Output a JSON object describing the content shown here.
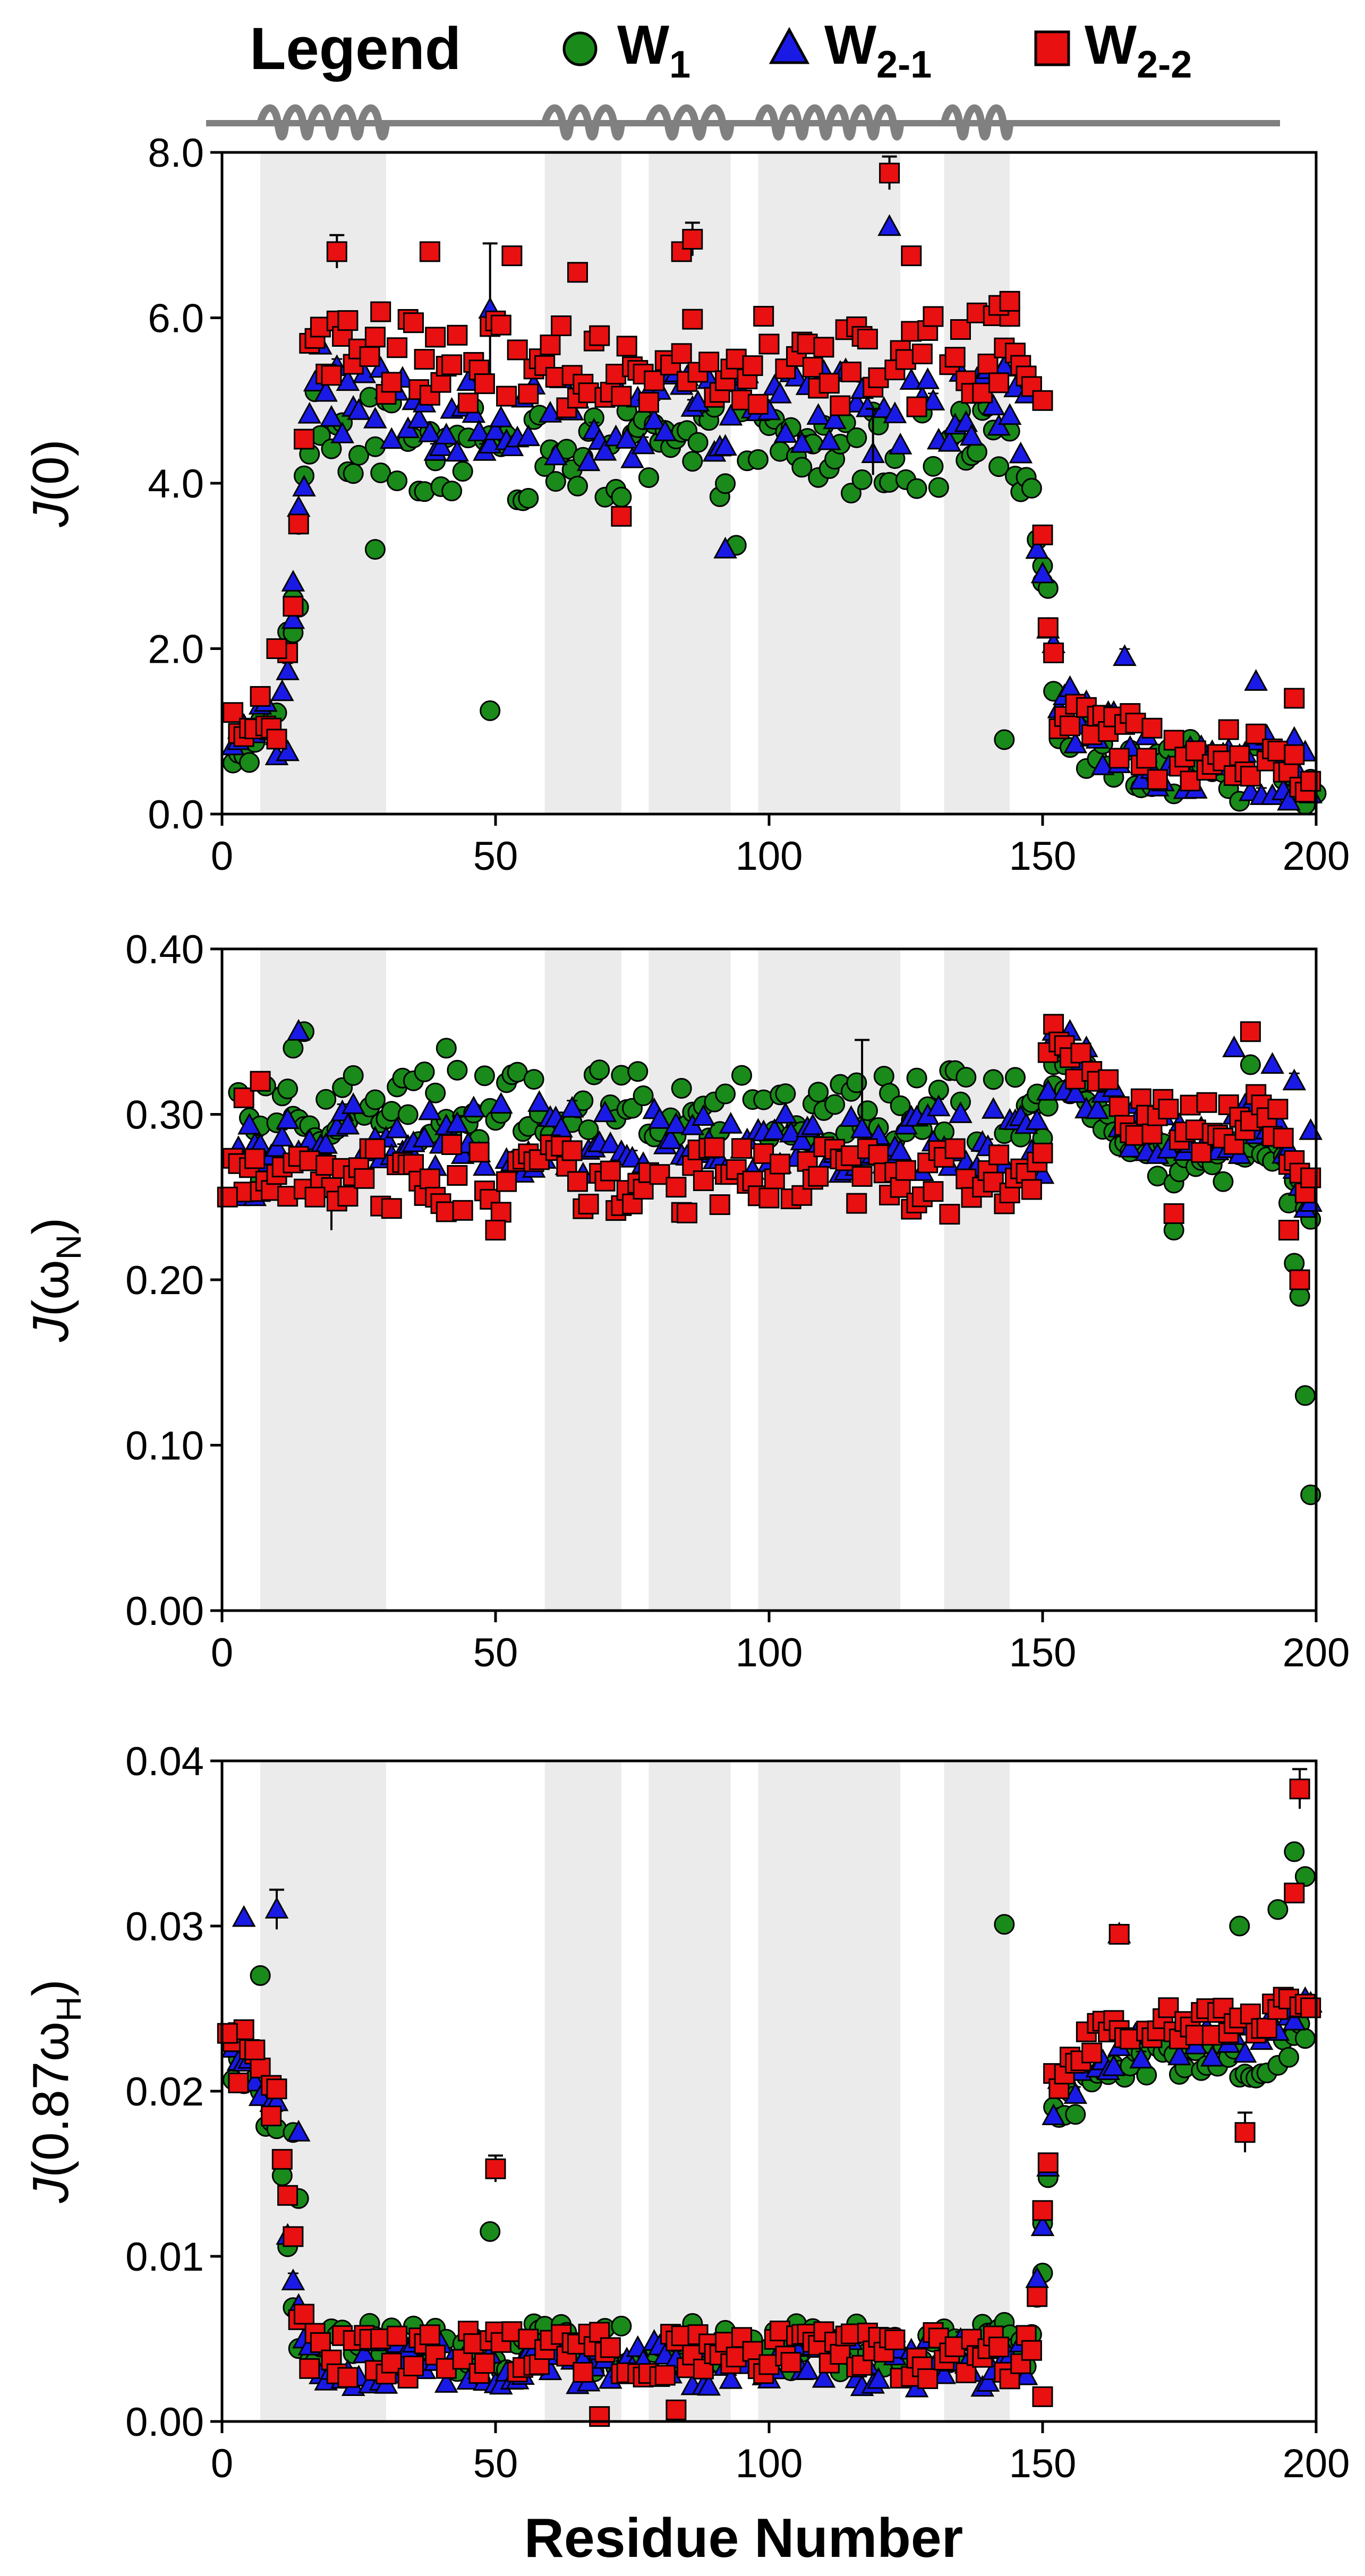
{
  "legend": {
    "title": "Legend",
    "entries": [
      {
        "key": "W1",
        "base": "W",
        "sub": "1",
        "marker": "circle",
        "color": "#1a8a1a"
      },
      {
        "key": "W2-1",
        "base": "W",
        "sub": "2-1",
        "marker": "triangle",
        "color": "#1a1ae6"
      },
      {
        "key": "W2-2",
        "base": "W",
        "sub": "2-2",
        "marker": "square",
        "color": "#e81010"
      }
    ]
  },
  "colors": {
    "W1": "#1a8a1a",
    "W2-1": "#1a1ae6",
    "W2-2": "#e81010",
    "shade": "#ebebeb",
    "axis": "#000000",
    "secondary": "#808080"
  },
  "x_axis_label": "Residue Number",
  "secondary_structure": {
    "helices": [
      [
        7,
        30
      ],
      [
        59,
        73
      ],
      [
        78,
        93
      ],
      [
        98,
        124
      ],
      [
        132,
        144
      ]
    ]
  },
  "chart_data": [
    {
      "type": "scatter",
      "title": "",
      "ylabel": {
        "main": "J(0)",
        "parts": [
          {
            "t": "J",
            "i": true
          },
          {
            "t": "(0)"
          }
        ]
      },
      "xlim": [
        0,
        200
      ],
      "ylim": [
        0,
        8
      ],
      "xticks": [
        0,
        50,
        100,
        150,
        200
      ],
      "xtick_labels": [
        "0",
        "50",
        "100",
        "150",
        "200"
      ],
      "yticks": [
        0,
        2,
        4,
        6,
        8
      ],
      "ytick_labels": [
        "0.0",
        "2.0",
        "4.0",
        "6.0",
        "8.0"
      ],
      "shaded_regions": [
        [
          7,
          30
        ],
        [
          59,
          73
        ],
        [
          78,
          93
        ],
        [
          98,
          124
        ],
        [
          132,
          144
        ]
      ],
      "base": {
        "W1": 4.4,
        "W2-1": 4.9,
        "W2-2": 5.5
      },
      "anchors": [
        [
          0,
          0.9
        ],
        [
          9,
          1.0
        ],
        [
          11,
          1.3
        ],
        [
          13,
          2.6
        ],
        [
          16,
          5.0
        ],
        [
          20,
          4.8
        ],
        [
          30,
          4.6
        ],
        [
          60,
          4.3
        ],
        [
          100,
          4.5
        ],
        [
          125,
          4.4
        ],
        [
          145,
          4.6
        ],
        [
          148,
          4.3
        ],
        [
          150,
          3.0
        ],
        [
          153,
          1.3
        ],
        [
          160,
          0.9
        ],
        [
          170,
          0.7
        ],
        [
          200,
          0.5
        ]
      ],
      "spread": 0.55,
      "series_points": {
        "W1": [
          [
            3,
            0.95
          ],
          [
            13,
            2.6
          ],
          [
            14,
            2.5
          ],
          [
            49,
            1.25
          ],
          [
            28,
            3.2
          ],
          [
            94,
            3.25
          ],
          [
            143,
            0.9
          ],
          [
            150,
            3.0
          ],
          [
            200,
            0.25
          ]
        ],
        "W2-1": [
          [
            10,
            0.7
          ],
          [
            12,
            0.75
          ],
          [
            13,
            2.8
          ],
          [
            49,
            6.1
          ],
          [
            92,
            3.2
          ],
          [
            122,
            7.1
          ],
          [
            143,
            5.4
          ],
          [
            150,
            2.9
          ],
          [
            165,
            1.9
          ],
          [
            189,
            1.6
          ]
        ],
        "W2-2": [
          [
            10,
            2.0
          ],
          [
            21,
            6.8
          ],
          [
            38,
            6.8
          ],
          [
            53,
            6.75
          ],
          [
            65,
            6.55
          ],
          [
            73,
            3.6
          ],
          [
            84,
            6.8
          ],
          [
            86,
            6.95
          ],
          [
            122,
            7.75
          ],
          [
            126,
            6.75
          ],
          [
            142,
            6.15
          ],
          [
            144,
            6.2
          ],
          [
            150,
            5.0
          ],
          [
            196,
            1.4
          ]
        ]
      },
      "error_bars": {
        "W2-1": [
          [
            49,
            6.1,
            0.8
          ]
        ],
        "W2-2": [
          [
            21,
            6.8,
            0.2
          ],
          [
            86,
            6.95,
            0.2
          ],
          [
            122,
            7.75,
            0.2
          ],
          [
            119,
            4.5,
            0.4
          ]
        ]
      }
    },
    {
      "type": "scatter",
      "title": "",
      "ylabel": {
        "main": "J(ωN)",
        "parts": [
          {
            "t": "J",
            "i": true
          },
          {
            "t": "(ω"
          },
          {
            "t": "N",
            "sub": true
          },
          {
            "t": ")"
          }
        ]
      },
      "xlim": [
        0,
        200
      ],
      "ylim": [
        0,
        0.4
      ],
      "xticks": [
        0,
        50,
        100,
        150,
        200
      ],
      "xtick_labels": [
        "0",
        "50",
        "100",
        "150",
        "200"
      ],
      "yticks": [
        0,
        0.1,
        0.2,
        0.3,
        0.4
      ],
      "ytick_labels": [
        "0.00",
        "0.10",
        "0.20",
        "0.30",
        "0.40"
      ],
      "shaded_regions": [
        [
          7,
          30
        ],
        [
          59,
          73
        ],
        [
          78,
          93
        ],
        [
          98,
          124
        ],
        [
          132,
          144
        ]
      ],
      "base": {
        "W1": 0.305,
        "W2-1": 0.285,
        "W2-2": 0.26
      },
      "anchors": [
        [
          0,
          0.0
        ],
        [
          150,
          0.0
        ],
        [
          152,
          0.035
        ],
        [
          158,
          0.015
        ],
        [
          165,
          -0.005
        ],
        [
          175,
          -0.02
        ],
        [
          185,
          -0.015
        ],
        [
          190,
          0.0
        ],
        [
          195,
          -0.03
        ],
        [
          200,
          -0.06
        ]
      ],
      "spread": 0.022,
      "series_points": {
        "W1": [
          [
            7,
            0.26
          ],
          [
            13,
            0.34
          ],
          [
            15,
            0.35
          ],
          [
            41,
            0.34
          ],
          [
            152,
            0.33
          ],
          [
            154,
            0.33
          ],
          [
            158,
            0.33
          ],
          [
            174,
            0.23
          ],
          [
            188,
            0.33
          ],
          [
            196,
            0.21
          ],
          [
            197,
            0.19
          ],
          [
            198,
            0.13
          ],
          [
            199,
            0.07
          ]
        ],
        "W2-1": [
          [
            3,
            0.25
          ],
          [
            6,
            0.25
          ],
          [
            14,
            0.35
          ],
          [
            152,
            0.35
          ],
          [
            155,
            0.35
          ],
          [
            158,
            0.34
          ],
          [
            185,
            0.34
          ],
          [
            192,
            0.33
          ],
          [
            196,
            0.32
          ],
          [
            199,
            0.29
          ]
        ],
        "W2-2": [
          [
            1,
            0.25
          ],
          [
            4,
            0.31
          ],
          [
            7,
            0.32
          ],
          [
            17,
            0.25
          ],
          [
            50,
            0.23
          ],
          [
            174,
            0.24
          ],
          [
            188,
            0.35
          ],
          [
            195,
            0.23
          ],
          [
            197,
            0.2
          ]
        ]
      },
      "error_bars": {
        "W2-1": [
          [
            117,
            0.31,
            0.035
          ]
        ],
        "W2-2": [
          [
            20,
            0.24,
            0.01
          ]
        ]
      }
    },
    {
      "type": "scatter",
      "title": "",
      "ylabel": {
        "main": "J(0.87ωH)",
        "parts": [
          {
            "t": "J",
            "i": true
          },
          {
            "t": "(0.87ω"
          },
          {
            "t": "H",
            "sub": true
          },
          {
            "t": ")"
          }
        ]
      },
      "xlim": [
        0,
        200
      ],
      "ylim": [
        0,
        0.04
      ],
      "xticks": [
        0,
        50,
        100,
        150,
        200
      ],
      "xtick_labels": [
        "0",
        "50",
        "100",
        "150",
        "200"
      ],
      "yticks": [
        0,
        0.01,
        0.02,
        0.03,
        0.04
      ],
      "ytick_labels": [
        "0.00",
        "0.01",
        "0.02",
        "0.03",
        "0.04"
      ],
      "shaded_regions": [
        [
          7,
          30
        ],
        [
          59,
          73
        ],
        [
          78,
          93
        ],
        [
          98,
          124
        ],
        [
          132,
          144
        ]
      ],
      "base": {
        "W1": 0.0045,
        "W2-1": 0.0035,
        "W2-2": 0.004
      },
      "anchors": [
        [
          0,
          0.0195
        ],
        [
          5,
          0.0185
        ],
        [
          10,
          0.015
        ],
        [
          14,
          0.0025
        ],
        [
          16,
          0.0
        ],
        [
          140,
          0.0
        ],
        [
          148,
          0.0
        ],
        [
          152,
          0.016
        ],
        [
          160,
          0.0185
        ],
        [
          170,
          0.0195
        ],
        [
          180,
          0.0195
        ],
        [
          190,
          0.0195
        ],
        [
          200,
          0.0215
        ]
      ],
      "spread": 0.0015,
      "series_points": {
        "W1": [
          [
            7,
            0.027
          ],
          [
            13,
            0.0175
          ],
          [
            14,
            0.0135
          ],
          [
            49,
            0.0115
          ],
          [
            143,
            0.0301
          ],
          [
            150,
            0.012
          ],
          [
            186,
            0.03
          ],
          [
            193,
            0.031
          ],
          [
            196,
            0.0345
          ],
          [
            198,
            0.033
          ]
        ],
        "W2-1": [
          [
            4,
            0.0305
          ],
          [
            10,
            0.031
          ],
          [
            14,
            0.0175
          ],
          [
            164,
            0.0295
          ]
        ],
        "W2-2": [
          [
            1,
            0.0235
          ],
          [
            3,
            0.0205
          ],
          [
            6,
            0.0225
          ],
          [
            9,
            0.0185
          ],
          [
            50,
            0.0153
          ],
          [
            69,
            0.0003
          ],
          [
            83,
            0.0007
          ],
          [
            150,
            0.0015
          ],
          [
            164,
            0.0295
          ],
          [
            187,
            0.0175
          ],
          [
            196,
            0.032
          ],
          [
            197,
            0.0383
          ]
        ]
      },
      "error_bars": {
        "W2-1": [
          [
            10,
            0.031,
            0.0012
          ]
        ],
        "W2-2": [
          [
            50,
            0.0153,
            0.0008
          ],
          [
            197,
            0.0383,
            0.0012
          ],
          [
            187,
            0.0175,
            0.0012
          ]
        ]
      }
    }
  ]
}
